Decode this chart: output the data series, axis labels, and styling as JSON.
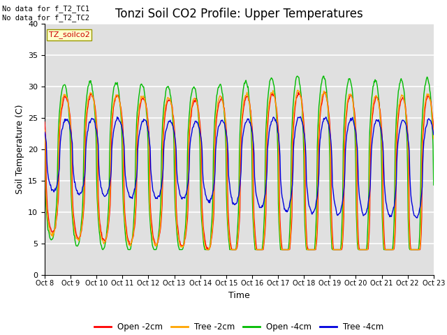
{
  "title": "Tonzi Soil CO2 Profile: Upper Temperatures",
  "xlabel": "Time",
  "ylabel": "Soil Temperature (C)",
  "ylim": [
    0,
    40
  ],
  "yticks": [
    0,
    5,
    10,
    15,
    20,
    25,
    30,
    35,
    40
  ],
  "bg_color": "#e0e0e0",
  "annotation_text": "No data for f_T2_TC1\nNo data for f_T2_TC2",
  "dataset_label": "TZ_soilco2",
  "legend_entries": [
    "Open -2cm",
    "Tree -2cm",
    "Open -4cm",
    "Tree -4cm"
  ],
  "line_colors": [
    "#ff0000",
    "#ffa500",
    "#00bb00",
    "#0000dd"
  ],
  "num_days": 15,
  "n_points_per_day": 48,
  "title_fontsize": 12,
  "axis_fontsize": 9,
  "tick_fontsize": 8
}
